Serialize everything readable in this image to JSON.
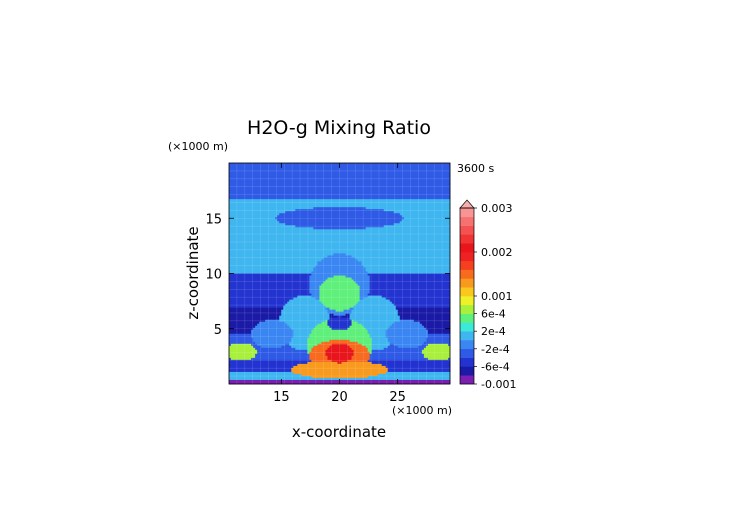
{
  "chart_data": {
    "type": "heatmap",
    "title": "H2O-g Mixing Ratio",
    "xlabel": "x-coordinate",
    "ylabel": "z-coordinate",
    "x_unit": "(×1000 m)",
    "y_unit": "(×1000 m)",
    "time_label": "3600 s",
    "xlim": [
      10.5,
      29.5
    ],
    "ylim": [
      0,
      20
    ],
    "x_ticks": [
      "15",
      "20",
      "25"
    ],
    "x_tick_values": [
      15,
      20,
      25
    ],
    "y_ticks": [
      "5",
      "10",
      "15"
    ],
    "y_tick_values": [
      5,
      10,
      15
    ],
    "colorbar": {
      "levels": [
        -0.001,
        -0.0008,
        -0.0006,
        -0.0004,
        -0.0002,
        0,
        0.0002,
        0.0004,
        0.0006,
        0.0008,
        0.001,
        0.0012,
        0.0014,
        0.0016,
        0.0018,
        0.002,
        0.0022,
        0.0024,
        0.0026,
        0.0028,
        0.003
      ],
      "colors": [
        "#7a1fb0",
        "#1a1aa6",
        "#2233d0",
        "#2e5ae6",
        "#3a86f2",
        "#3fb6f0",
        "#3ce8d8",
        "#5ef07a",
        "#a8f03c",
        "#f0f028",
        "#f8c81e",
        "#f89a1e",
        "#f86a1e",
        "#f4401e",
        "#ee2222",
        "#e8161c",
        "#f03434",
        "#f45252",
        "#f67272",
        "#f89494",
        "#faacac"
      ],
      "labels": [
        "0.003",
        "0.002",
        "0.001",
        "6e-4",
        "2e-4",
        "-2e-4",
        "-6e-4",
        "-0.001"
      ],
      "label_values": [
        0.003,
        0.002,
        0.001,
        0.0006,
        0.0002,
        -0.0002,
        -0.0006,
        -0.001
      ],
      "extend": "max"
    },
    "background_value": -0.00025,
    "features": [
      {
        "kind": "layer",
        "z0": 0,
        "z1": 0.4,
        "value": -0.001
      },
      {
        "kind": "layer",
        "z0": 0.4,
        "z1": 1.1,
        "value": 0.0001
      },
      {
        "kind": "layer",
        "z0": 1.1,
        "z1": 2.2,
        "value": -0.00055
      },
      {
        "kind": "layer",
        "z0": 2.2,
        "z1": 4.5,
        "value": -0.0004
      },
      {
        "kind": "layer",
        "z0": 4.5,
        "z1": 7.0,
        "value": -0.00075
      },
      {
        "kind": "layer",
        "z0": 7.0,
        "z1": 10.0,
        "value": -0.00045
      },
      {
        "kind": "layer",
        "z0": 10.0,
        "z1": 13.5,
        "value": 0.0001
      },
      {
        "kind": "layer",
        "z0": 13.5,
        "z1": 16.8,
        "value": 5e-05
      },
      {
        "kind": "layer",
        "z0": 16.8,
        "z1": 18.5,
        "value": -0.00028
      },
      {
        "kind": "layer",
        "z0": 18.5,
        "z1": 20,
        "value": -0.00035
      },
      {
        "kind": "blob",
        "x": 20,
        "z": 15,
        "rx": 5.5,
        "rz": 1.0,
        "value": -0.0004
      },
      {
        "kind": "blob",
        "x": 20,
        "z": 9.0,
        "rx": 2.6,
        "rz": 2.8,
        "value": -0.0001
      },
      {
        "kind": "blob",
        "x": 20,
        "z": 8.2,
        "rx": 1.8,
        "rz": 1.6,
        "value": 0.0004
      },
      {
        "kind": "blob",
        "x": 17.0,
        "z": 5.5,
        "rx": 2.2,
        "rz": 2.5,
        "value": 0.0
      },
      {
        "kind": "blob",
        "x": 23.0,
        "z": 5.5,
        "rx": 2.2,
        "rz": 2.5,
        "value": 0.0
      },
      {
        "kind": "blob",
        "x": 14.2,
        "z": 4.5,
        "rx": 1.8,
        "rz": 1.3,
        "value": -0.0002
      },
      {
        "kind": "blob",
        "x": 25.8,
        "z": 4.5,
        "rx": 1.8,
        "rz": 1.3,
        "value": -0.0002
      },
      {
        "kind": "blob",
        "x": 11.5,
        "z": 2.9,
        "rx": 1.4,
        "rz": 0.8,
        "value": 0.0006
      },
      {
        "kind": "blob",
        "x": 28.5,
        "z": 2.9,
        "rx": 1.4,
        "rz": 0.8,
        "value": 0.0006
      },
      {
        "kind": "blob",
        "x": 20,
        "z": 3.5,
        "rx": 2.8,
        "rz": 2.5,
        "value": 0.0004
      },
      {
        "kind": "blob",
        "x": 20,
        "z": 5.5,
        "rx": 1.1,
        "rz": 0.6,
        "value": -0.0005
      },
      {
        "kind": "blob",
        "x": 20,
        "z": 2.6,
        "rx": 2.6,
        "rz": 1.4,
        "value": 0.0014
      },
      {
        "kind": "blob",
        "x": 20,
        "z": 1.3,
        "rx": 4.2,
        "rz": 0.8,
        "value": 0.0012
      },
      {
        "kind": "blob",
        "x": 20,
        "z": 2.8,
        "rx": 1.2,
        "rz": 0.9,
        "value": 0.0021
      }
    ]
  }
}
